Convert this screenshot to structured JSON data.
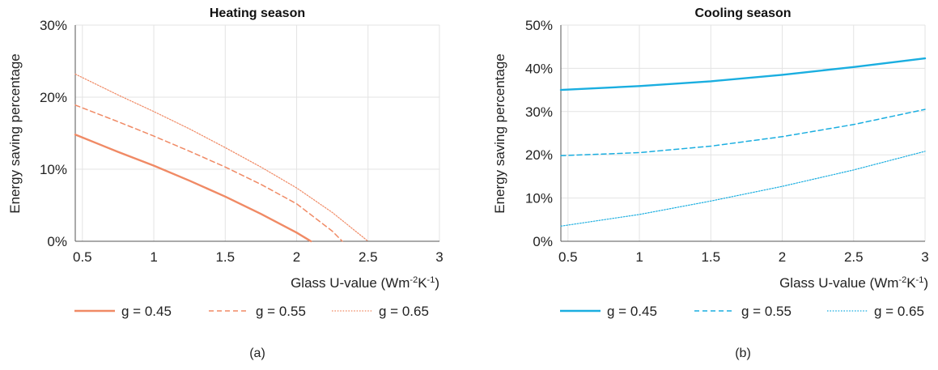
{
  "chart_data": [
    {
      "type": "line",
      "title": "Heating season",
      "xlabel": "Glass U-value (Wm-2K-1)",
      "ylabel": "Energy saving percentage",
      "panel_label": "(a)",
      "xlim": [
        0.45,
        3
      ],
      "ylim": [
        0,
        30
      ],
      "x_ticks": [
        0.5,
        1,
        1.5,
        2,
        2.5,
        3
      ],
      "x_tick_labels": [
        "0.5",
        "1",
        "1.5",
        "2",
        "2.5",
        "3"
      ],
      "y_ticks": [
        0,
        10,
        20,
        30
      ],
      "y_tick_labels": [
        "0%",
        "10%",
        "20%",
        "30%"
      ],
      "grid": true,
      "legend_position": "bottom",
      "color": "#f08a65",
      "series": [
        {
          "name": "g = 0.45",
          "dash": "solid",
          "x": [
            0.45,
            0.75,
            1.0,
            1.25,
            1.5,
            1.75,
            2.0,
            2.1
          ],
          "y": [
            14.8,
            12.4,
            10.5,
            8.4,
            6.2,
            3.8,
            1.2,
            0
          ]
        },
        {
          "name": "g = 0.55",
          "dash": "dashed",
          "x": [
            0.45,
            0.75,
            1.0,
            1.25,
            1.5,
            1.75,
            2.0,
            2.25,
            2.32
          ],
          "y": [
            18.9,
            16.6,
            14.6,
            12.5,
            10.3,
            7.9,
            5.2,
            1.4,
            0
          ]
        },
        {
          "name": "g = 0.65",
          "dash": "dotted",
          "x": [
            0.45,
            0.75,
            1.0,
            1.25,
            1.5,
            1.75,
            2.0,
            2.25,
            2.5
          ],
          "y": [
            23.2,
            20.3,
            18.0,
            15.6,
            13.0,
            10.3,
            7.4,
            4.0,
            0
          ]
        }
      ]
    },
    {
      "type": "line",
      "title": "Cooling season",
      "xlabel": "Glass U-value (Wm-2K-1)",
      "ylabel": "Energy saving percentage",
      "panel_label": "(b)",
      "xlim": [
        0.45,
        3
      ],
      "ylim": [
        0,
        50
      ],
      "x_ticks": [
        0.5,
        1,
        1.5,
        2,
        2.5,
        3
      ],
      "x_tick_labels": [
        "0.5",
        "1",
        "1.5",
        "2",
        "2.5",
        "3"
      ],
      "y_ticks": [
        0,
        10,
        20,
        30,
        40,
        50
      ],
      "y_tick_labels": [
        "0%",
        "10%",
        "20%",
        "30%",
        "40%",
        "50%"
      ],
      "grid": true,
      "legend_position": "bottom",
      "color": "#1aaee0",
      "series": [
        {
          "name": "g = 0.45",
          "dash": "solid",
          "x": [
            0.45,
            1.0,
            1.5,
            2.0,
            2.5,
            3.0
          ],
          "y": [
            35.0,
            35.9,
            37.0,
            38.5,
            40.3,
            42.3
          ]
        },
        {
          "name": "g = 0.55",
          "dash": "dashed",
          "x": [
            0.45,
            1.0,
            1.5,
            2.0,
            2.5,
            3.0
          ],
          "y": [
            19.8,
            20.5,
            22.0,
            24.2,
            27.0,
            30.5
          ]
        },
        {
          "name": "g = 0.65",
          "dash": "dotted",
          "x": [
            0.45,
            1.0,
            1.5,
            2.0,
            2.5,
            3.0
          ],
          "y": [
            3.5,
            6.2,
            9.3,
            12.7,
            16.5,
            20.8
          ]
        }
      ]
    }
  ]
}
